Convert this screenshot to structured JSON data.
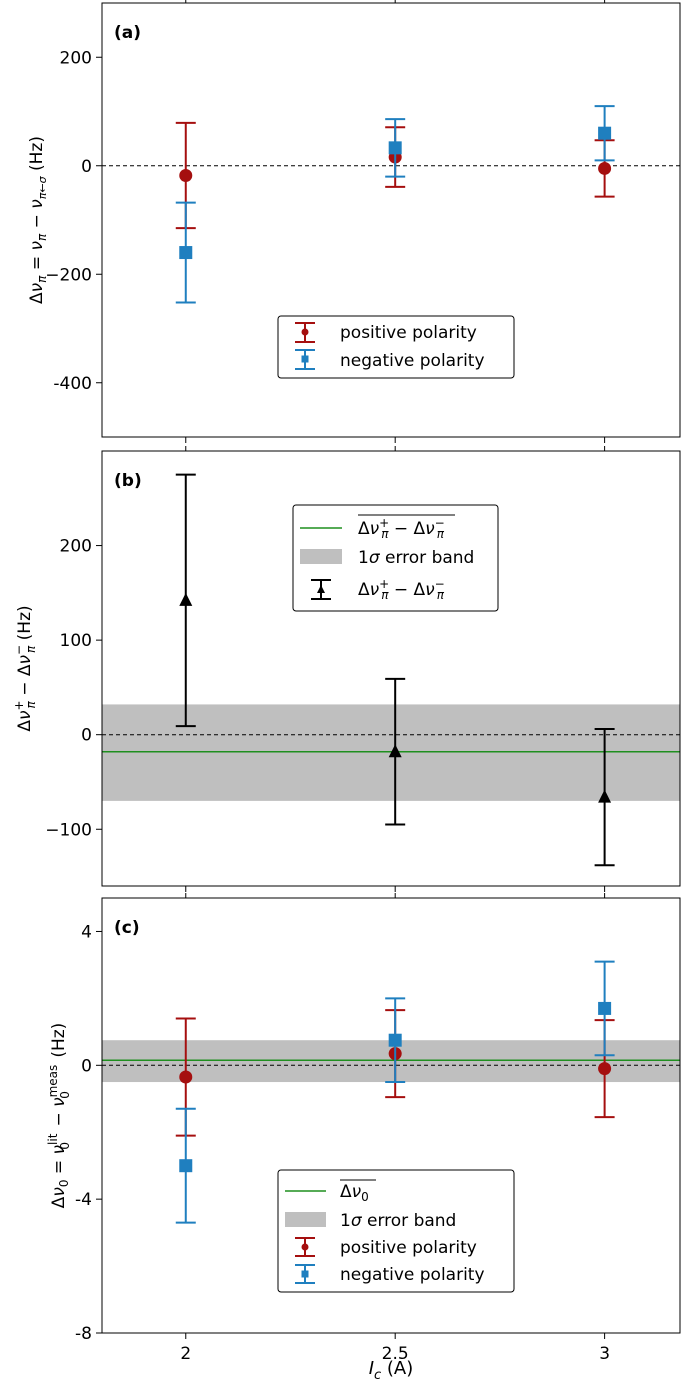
{
  "figure": {
    "xlabel": "I_c (A)",
    "xlabel_main": "I",
    "xlabel_sub": "c",
    "xlabel_unit": " (A)"
  },
  "colors": {
    "positive": "#a50f0f",
    "negative": "#1f7fbf",
    "difference": "#000000",
    "mean_line": "#1f8f1f",
    "error_band": "#aaaaaa",
    "zero_line": "#000000"
  },
  "chart_data": [
    {
      "panel": "(a)",
      "type": "scatter",
      "ylabel": "Δν_π = ν_π − ν_{π←σ} (Hz)",
      "ylim": [
        -500,
        300
      ],
      "yticks": [
        200,
        0,
        -200,
        -400
      ],
      "ytick_labels": [
        "200",
        "0",
        "−200",
        "-400"
      ],
      "xlim": [
        1.8,
        3.18
      ],
      "xticks": [
        2,
        2.5,
        3
      ],
      "zero_line": true,
      "legend": "lower-center",
      "series": [
        {
          "name": "positive polarity",
          "marker": "circle",
          "x": [
            2,
            2.5,
            3
          ],
          "y": [
            -18,
            16,
            -5
          ],
          "yerr": [
            97,
            55,
            52
          ]
        },
        {
          "name": "negative polarity",
          "marker": "square",
          "x": [
            2,
            2.5,
            3
          ],
          "y": [
            -160,
            33,
            60
          ],
          "yerr": [
            92,
            53,
            50
          ]
        }
      ],
      "legend_entries": [
        "positive polarity",
        "negative polarity"
      ]
    },
    {
      "panel": "(b)",
      "type": "scatter",
      "ylabel": "Δν_π^+ − Δν_π^− (Hz)",
      "ylim": [
        -160,
        300
      ],
      "yticks": [
        200,
        100,
        0,
        -100
      ],
      "ytick_labels": [
        "200",
        "100",
        "0",
        "−100"
      ],
      "xlim": [
        1.8,
        3.18
      ],
      "xticks": [
        2,
        2.5,
        3
      ],
      "zero_line": true,
      "legend": "upper-center",
      "mean_line": -18,
      "error_band": [
        -70,
        32
      ],
      "series": [
        {
          "name": "Δν_π^+ − Δν_π^−",
          "marker": "triangle",
          "x": [
            2,
            2.5,
            3
          ],
          "y": [
            142,
            -18,
            -66
          ],
          "yerr": [
            133,
            77,
            72
          ]
        }
      ],
      "legend_entries": [
        "Δν_π^+ − Δν_π^− (mean)",
        "1σ error band",
        "Δν_π^+ − Δν_π^−"
      ]
    },
    {
      "panel": "(c)",
      "type": "scatter",
      "ylabel": "Δν_0 = ν_0^lit − ν_0^meas (Hz)",
      "ylim": [
        -8,
        5
      ],
      "yticks": [
        4,
        0,
        -4,
        -8
      ],
      "ytick_labels": [
        "4",
        "0",
        "-4",
        "-8"
      ],
      "xlim": [
        1.8,
        3.18
      ],
      "xticks": [
        2,
        2.5,
        3
      ],
      "xtick_labels": [
        "2",
        "2.5",
        "3"
      ],
      "zero_line": true,
      "legend": "lower-center",
      "mean_line": 0.15,
      "error_band": [
        -0.5,
        0.75
      ],
      "series": [
        {
          "name": "positive polarity",
          "marker": "circle",
          "x": [
            2,
            2.5,
            3
          ],
          "y": [
            -0.35,
            0.35,
            -0.1
          ],
          "yerr": [
            1.75,
            1.3,
            1.45
          ]
        },
        {
          "name": "negative polarity",
          "marker": "square",
          "x": [
            2,
            2.5,
            3
          ],
          "y": [
            -3.0,
            0.75,
            1.7
          ],
          "yerr": [
            1.7,
            1.25,
            1.4
          ]
        }
      ],
      "legend_entries": [
        "Δν_0 (mean)",
        "1σ error band",
        "positive polarity",
        "negative polarity"
      ]
    }
  ]
}
